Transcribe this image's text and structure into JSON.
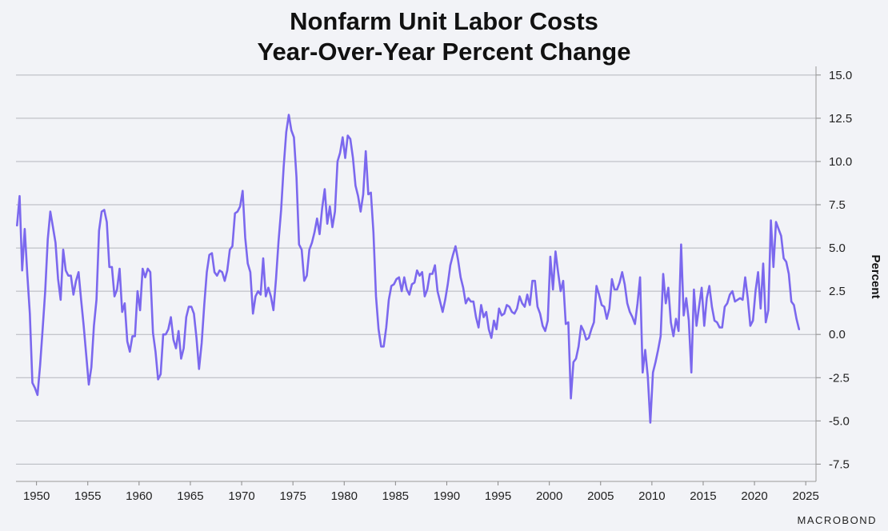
{
  "brand": "MACROBOND",
  "chart_data": {
    "type": "line",
    "title": "Nonfarm Unit Labor Costs",
    "subtitle": "Year-Over-Year Percent Change",
    "xlabel": "",
    "ylabel": "Percent",
    "xlim": [
      1948.0,
      2026.0
    ],
    "ylim": [
      -8.5,
      15.5
    ],
    "x_ticks": [
      1950,
      1955,
      1960,
      1965,
      1970,
      1975,
      1980,
      1985,
      1990,
      1995,
      2000,
      2005,
      2010,
      2015,
      2020,
      2025
    ],
    "y_ticks": [
      "15.0",
      "12.5",
      "10.0",
      "7.5",
      "5.0",
      "2.5",
      "0.0",
      "-2.5",
      "-5.0",
      "-7.5"
    ],
    "grid": true,
    "y_axis_side": "right",
    "line_color": "#7b68ee",
    "series": [
      {
        "x": [
          1948.1,
          1948.35,
          1948.6,
          1948.85,
          1949.1,
          1949.35,
          1949.6,
          1949.85,
          1950.1,
          1950.35,
          1950.6,
          1950.85,
          1951.1,
          1951.35,
          1951.6,
          1951.85,
          1952.1,
          1952.35,
          1952.6,
          1952.85,
          1953.1,
          1953.35,
          1953.6,
          1953.85,
          1954.1,
          1954.35,
          1954.6,
          1954.85,
          1955.1,
          1955.35,
          1955.6,
          1955.85,
          1956.1,
          1956.35,
          1956.6,
          1956.85,
          1957.1,
          1957.35,
          1957.6,
          1957.85,
          1958.1,
          1958.35,
          1958.6,
          1958.85,
          1959.1,
          1959.35,
          1959.6,
          1959.85,
          1960.1,
          1960.35,
          1960.6,
          1960.85,
          1961.1,
          1961.35,
          1961.6,
          1961.85,
          1962.1,
          1962.35,
          1962.6,
          1962.85,
          1963.1,
          1963.35,
          1963.6,
          1963.85,
          1964.1,
          1964.35,
          1964.6,
          1964.85,
          1965.1,
          1965.35,
          1965.6,
          1965.85,
          1966.1,
          1966.35,
          1966.6,
          1966.85,
          1967.1,
          1967.35,
          1967.6,
          1967.85,
          1968.1,
          1968.35,
          1968.6,
          1968.85,
          1969.1,
          1969.35,
          1969.6,
          1969.85,
          1970.1,
          1970.35,
          1970.6,
          1970.85,
          1971.1,
          1971.35,
          1971.6,
          1971.85,
          1972.1,
          1972.35,
          1972.6,
          1972.85,
          1973.1,
          1973.35,
          1973.6,
          1973.85,
          1974.1,
          1974.35,
          1974.6,
          1974.85,
          1975.1,
          1975.35,
          1975.6,
          1975.85,
          1976.1,
          1976.35,
          1976.6,
          1976.85,
          1977.1,
          1977.35,
          1977.6,
          1977.85,
          1978.1,
          1978.35,
          1978.6,
          1978.85,
          1979.1,
          1979.35,
          1979.6,
          1979.85,
          1980.1,
          1980.35,
          1980.6,
          1980.85,
          1981.1,
          1981.35,
          1981.6,
          1981.85,
          1982.1,
          1982.35,
          1982.6,
          1982.85,
          1983.1,
          1983.35,
          1983.6,
          1983.85,
          1984.1,
          1984.35,
          1984.6,
          1984.85,
          1985.1,
          1985.35,
          1985.6,
          1985.85,
          1986.1,
          1986.35,
          1986.6,
          1986.85,
          1987.1,
          1987.35,
          1987.6,
          1987.85,
          1988.1,
          1988.35,
          1988.6,
          1988.85,
          1989.1,
          1989.35,
          1989.6,
          1989.85,
          1990.1,
          1990.35,
          1990.6,
          1990.85,
          1991.1,
          1991.35,
          1991.6,
          1991.85,
          1992.1,
          1992.35,
          1992.6,
          1992.85,
          1993.1,
          1993.35,
          1993.6,
          1993.85,
          1994.1,
          1994.35,
          1994.6,
          1994.85,
          1995.1,
          1995.35,
          1995.6,
          1995.85,
          1996.1,
          1996.35,
          1996.6,
          1996.85,
          1997.1,
          1997.35,
          1997.6,
          1997.85,
          1998.1,
          1998.35,
          1998.6,
          1998.85,
          1999.1,
          1999.35,
          1999.6,
          1999.85,
          2000.1,
          2000.35,
          2000.6,
          2000.85,
          2001.1,
          2001.35,
          2001.6,
          2001.85,
          2002.1,
          2002.35,
          2002.6,
          2002.85,
          2003.1,
          2003.35,
          2003.6,
          2003.85,
          2004.1,
          2004.35,
          2004.6,
          2004.85,
          2005.1,
          2005.35,
          2005.6,
          2005.85,
          2006.1,
          2006.35,
          2006.6,
          2006.85,
          2007.1,
          2007.35,
          2007.6,
          2007.85,
          2008.1,
          2008.35,
          2008.6,
          2008.85,
          2009.1,
          2009.35,
          2009.6,
          2009.85,
          2010.1,
          2010.35,
          2010.6,
          2010.85,
          2011.1,
          2011.35,
          2011.6,
          2011.85,
          2012.1,
          2012.35,
          2012.6,
          2012.85,
          2013.1,
          2013.35,
          2013.6,
          2013.85,
          2014.1,
          2014.35,
          2014.6,
          2014.85,
          2015.1,
          2015.35,
          2015.6,
          2015.85,
          2016.1,
          2016.35,
          2016.6,
          2016.85,
          2017.1,
          2017.35,
          2017.6,
          2017.85,
          2018.1,
          2018.35,
          2018.6,
          2018.85,
          2019.1,
          2019.35,
          2019.6,
          2019.85,
          2020.1,
          2020.35,
          2020.6,
          2020.85,
          2021.1,
          2021.35,
          2021.6,
          2021.85,
          2022.1,
          2022.35,
          2022.6,
          2022.85,
          2023.1,
          2023.35,
          2023.6,
          2023.85,
          2024.1,
          2024.35
        ],
        "y": [
          6.3,
          8.0,
          3.7,
          6.1,
          3.5,
          1.2,
          -2.8,
          -3.1,
          -3.5,
          -1.8,
          0.3,
          2.5,
          5.5,
          7.1,
          6.2,
          5.3,
          3.2,
          2.0,
          4.9,
          3.7,
          3.4,
          3.4,
          2.3,
          3.1,
          3.6,
          2.0,
          0.5,
          -1.2,
          -2.9,
          -1.9,
          0.5,
          2.0,
          6.0,
          7.1,
          7.2,
          6.5,
          3.9,
          3.9,
          2.2,
          2.6,
          3.8,
          1.3,
          1.8,
          -0.4,
          -1.0,
          -0.1,
          -0.1,
          2.5,
          1.4,
          3.8,
          3.3,
          3.8,
          3.6,
          0.1,
          -1.0,
          -2.6,
          -2.3,
          0.0,
          0.0,
          0.3,
          1.0,
          -0.3,
          -0.8,
          0.2,
          -1.4,
          -0.8,
          1.0,
          1.6,
          1.6,
          1.2,
          -0.2,
          -2.0,
          -0.5,
          1.7,
          3.6,
          4.6,
          4.7,
          3.6,
          3.4,
          3.7,
          3.6,
          3.1,
          3.7,
          4.9,
          5.1,
          7.0,
          7.1,
          7.4,
          8.3,
          5.6,
          4.1,
          3.6,
          1.2,
          2.2,
          2.5,
          2.3,
          4.4,
          2.2,
          2.7,
          2.2,
          1.4,
          3.2,
          5.4,
          7.2,
          9.7,
          11.7,
          12.7,
          11.8,
          11.4,
          9.1,
          5.2,
          4.9,
          3.1,
          3.4,
          4.9,
          5.3,
          5.9,
          6.7,
          5.8,
          7.3,
          8.4,
          6.4,
          7.4,
          6.2,
          7.1,
          10.0,
          10.5,
          11.4,
          10.2,
          11.5,
          11.3,
          10.2,
          8.6,
          8.0,
          7.1,
          8.1,
          10.6,
          8.1,
          8.2,
          5.9,
          2.2,
          0.3,
          -0.7,
          -0.7,
          0.4,
          2.0,
          2.8,
          2.9,
          3.2,
          3.3,
          2.5,
          3.3,
          2.6,
          2.3,
          2.9,
          3.0,
          3.7,
          3.4,
          3.6,
          2.2,
          2.6,
          3.5,
          3.5,
          4.0,
          2.5,
          1.9,
          1.3,
          2.0,
          2.9,
          4.0,
          4.6,
          5.1,
          4.3,
          3.3,
          2.7,
          1.8,
          2.1,
          1.9,
          1.9,
          1.0,
          0.4,
          1.7,
          1.0,
          1.3,
          0.3,
          -0.2,
          0.8,
          0.3,
          1.5,
          1.1,
          1.2,
          1.7,
          1.6,
          1.3,
          1.2,
          1.5,
          2.2,
          1.8,
          1.6,
          2.3,
          1.7,
          3.1,
          3.1,
          1.6,
          1.2,
          0.5,
          0.2,
          0.8,
          4.5,
          2.6,
          4.8,
          3.6,
          2.5,
          3.1,
          0.6,
          0.7,
          -3.7,
          -1.6,
          -1.4,
          -0.7,
          0.5,
          0.2,
          -0.3,
          -0.2,
          0.3,
          0.7,
          2.8,
          2.3,
          1.7,
          1.6,
          0.9,
          1.5,
          3.2,
          2.6,
          2.6,
          3.0,
          3.6,
          2.9,
          1.8,
          1.3,
          1.0,
          0.6,
          1.8,
          3.3,
          -2.2,
          -0.9,
          -2.4,
          -5.1,
          -2.2,
          -1.6,
          -0.9,
          -0.1,
          3.5,
          1.8,
          2.7,
          0.7,
          -0.1,
          0.9,
          0.2,
          5.2,
          1.1,
          2.1,
          0.8,
          -2.2,
          2.6,
          0.5,
          1.6,
          2.7,
          0.5,
          2.1,
          2.8,
          1.6,
          0.8,
          0.7,
          0.4,
          0.4,
          1.6,
          1.8,
          2.3,
          2.5,
          1.9,
          2.0,
          2.1,
          2.0,
          3.3,
          2.1,
          0.5,
          0.8,
          2.5,
          3.6,
          1.5,
          4.1,
          0.7,
          1.4,
          6.6,
          3.9,
          6.5,
          6.1,
          5.7,
          4.4,
          4.2,
          3.5,
          1.9,
          1.7,
          0.9,
          0.3
        ]
      }
    ]
  }
}
